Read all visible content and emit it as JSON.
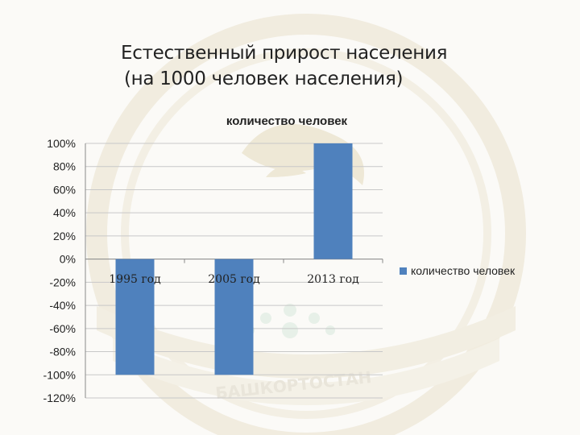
{
  "page": {
    "title_line1": "Естественный прирост населения",
    "title_line2": "(на 1000 человек населения)",
    "emblem_text": "БАШКОРТОСТАН"
  },
  "chart_data": {
    "type": "bar",
    "title": "количество человек",
    "categories": [
      "1995 год",
      "2005 год",
      "2013 год"
    ],
    "series": [
      {
        "name": "количество человек",
        "values": [
          -100,
          -100,
          100
        ],
        "color": "#4f81bd"
      }
    ],
    "ylim": [
      -120,
      100
    ],
    "yticks": [
      100,
      80,
      60,
      40,
      20,
      0,
      -20,
      -40,
      -60,
      -80,
      -100,
      -120
    ],
    "ytick_format": "percent",
    "xlabel": "",
    "ylabel": "",
    "grid": true,
    "legend_position": "right"
  }
}
